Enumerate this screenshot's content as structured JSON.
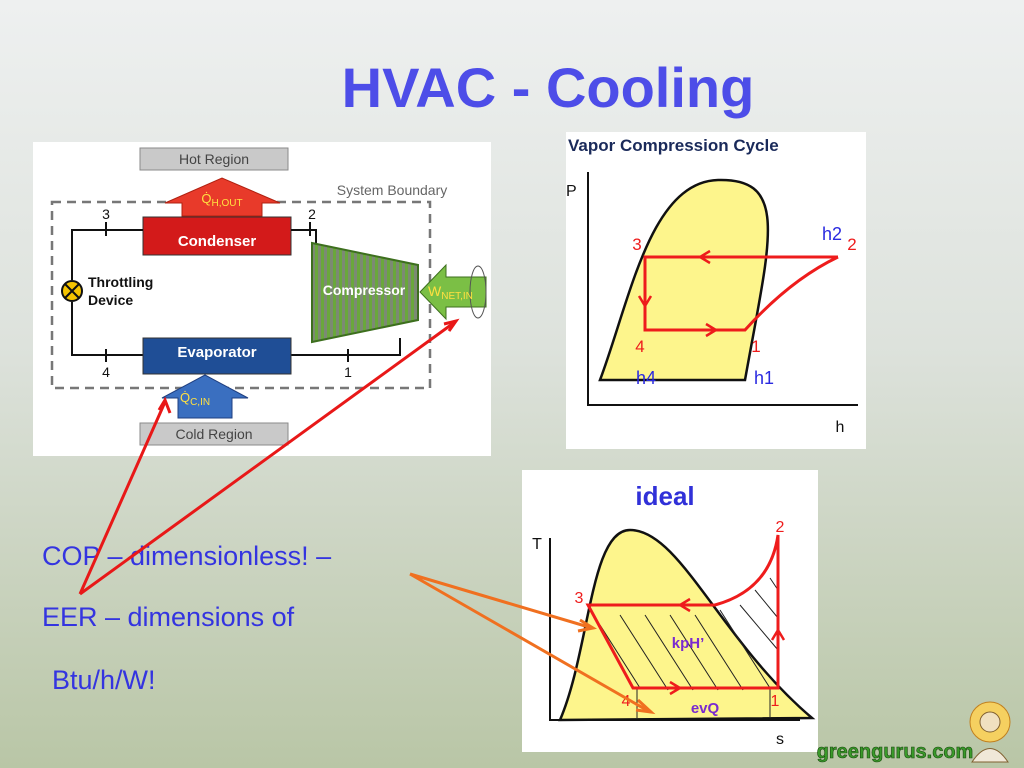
{
  "title": "HVAC - Cooling",
  "schematic": {
    "hot_region": "Hot Region",
    "cold_region": "Cold Region",
    "system_boundary": "System Boundary",
    "heat_out": {
      "symbol": "Q̇",
      "subscript": "H,OUT"
    },
    "heat_in": {
      "symbol": "Q̇",
      "subscript": "C,IN"
    },
    "work_in": {
      "symbol": "W",
      "subscript": "NET,IN"
    },
    "condenser": "Condenser",
    "evaporator": "Evaporator",
    "compressor": "Compressor",
    "throttling_device": [
      "Throttling",
      "Device"
    ],
    "states": [
      "3",
      "2",
      "4",
      "1"
    ]
  },
  "ph_diagram": {
    "title": "Vapor Compression Cycle",
    "y_label": "P",
    "x_label": "h",
    "points": [
      "3",
      "2",
      "4",
      "1"
    ],
    "enthalpy_labels": [
      "h2",
      "h4",
      "h1"
    ]
  },
  "ts_diagram": {
    "title": "ideal",
    "y_label": "T",
    "x_label": "s",
    "points": [
      "2",
      "3",
      "1",
      "4"
    ],
    "annotations": [
      "kpH’",
      "evQ"
    ]
  },
  "body": [
    "COP – dimensionless! –",
    "EER – dimensions of",
    "Btu/h/W!"
  ],
  "logo": "greengurus.com"
}
